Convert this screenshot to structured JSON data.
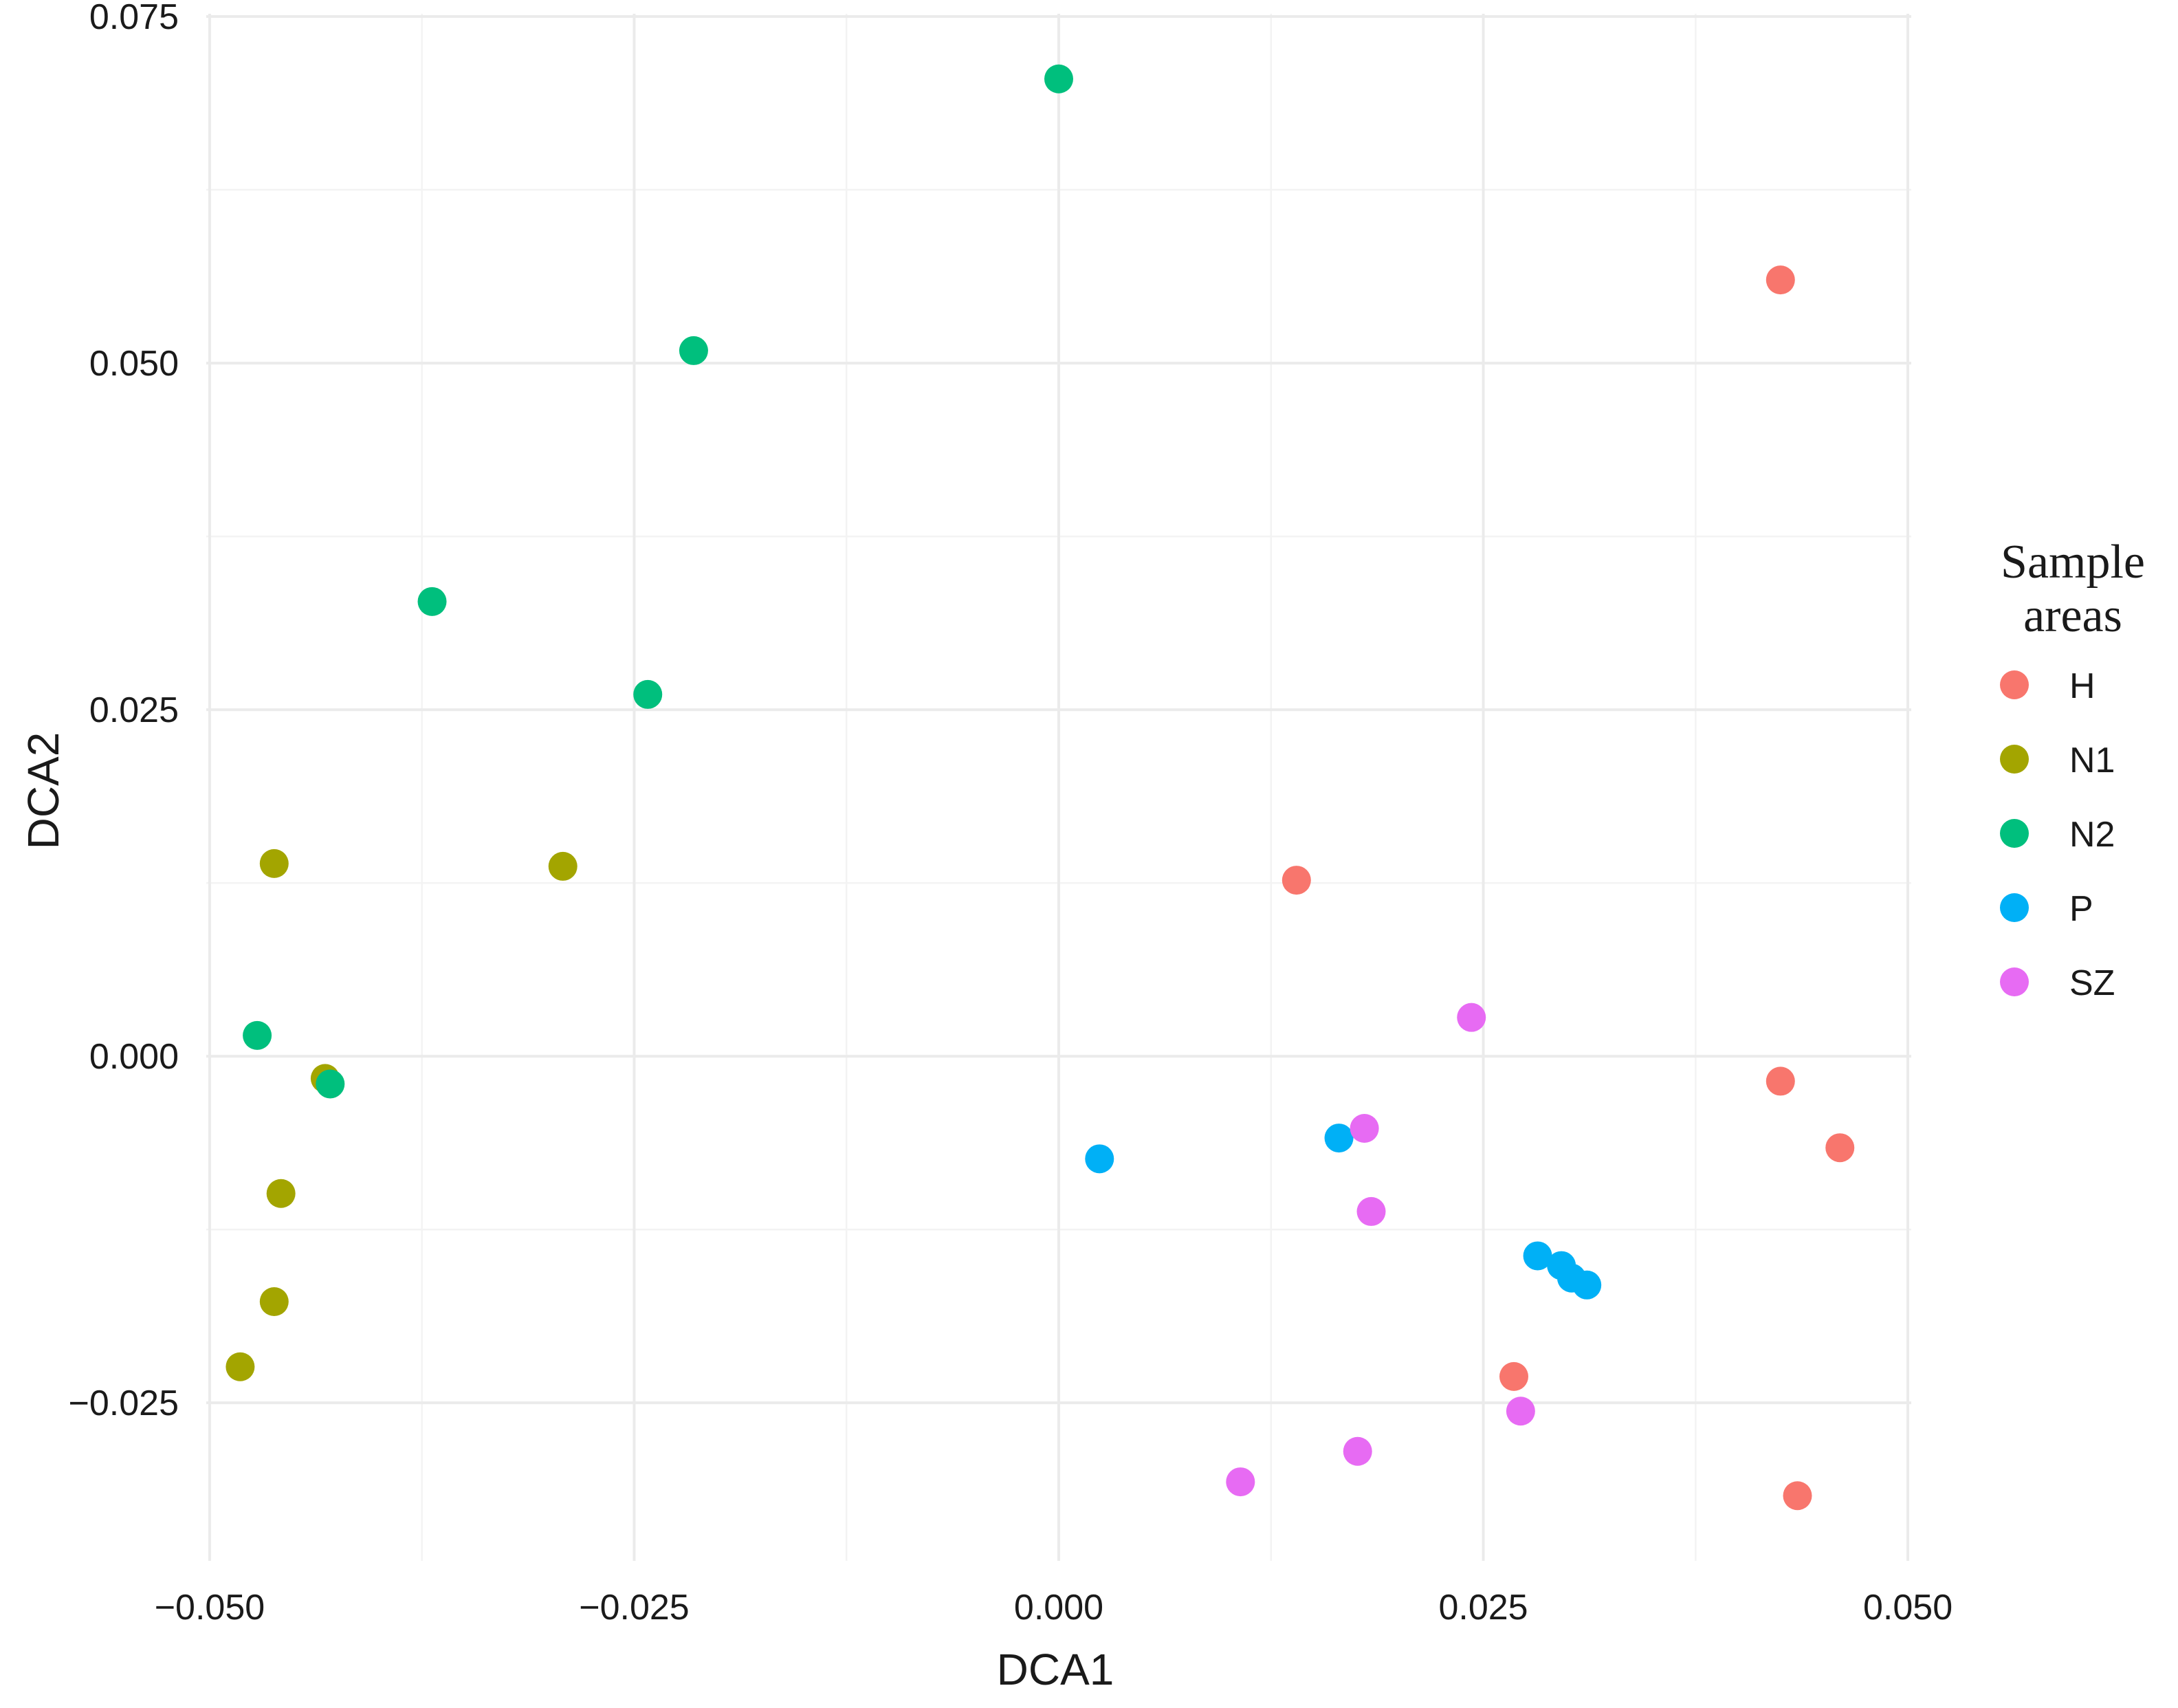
{
  "chart_data": {
    "type": "scatter",
    "title": "",
    "xlabel": "DCA1",
    "ylabel": "DCA2",
    "xlim": [
      -0.0502,
      0.0502
    ],
    "ylim": [
      -0.0364,
      0.0752
    ],
    "x_ticks": [
      -0.05,
      -0.025,
      0.0,
      0.025,
      0.05
    ],
    "x_tick_labels": [
      "−0.050",
      "−0.025",
      "0.000",
      "0.025",
      "0.050"
    ],
    "y_ticks": [
      -0.025,
      0.0,
      0.025,
      0.05,
      0.075
    ],
    "y_tick_labels": [
      "−0.025",
      "0.000",
      "0.025",
      "0.050",
      "0.075"
    ],
    "grid": true,
    "legend": {
      "title_lines": [
        "Sample",
        "areas"
      ],
      "placement": "right"
    },
    "series": [
      {
        "name": "H",
        "color": "#F8766D",
        "points": [
          {
            "x": 0.0425,
            "y": 0.056
          },
          {
            "x": 0.014,
            "y": 0.0127
          },
          {
            "x": 0.0425,
            "y": -0.0018
          },
          {
            "x": 0.046,
            "y": -0.0066
          },
          {
            "x": 0.0268,
            "y": -0.0231
          },
          {
            "x": 0.0435,
            "y": -0.0317
          }
        ]
      },
      {
        "name": "N1",
        "color": "#A3A500",
        "points": [
          {
            "x": -0.0462,
            "y": 0.0139
          },
          {
            "x": -0.0292,
            "y": 0.0137
          },
          {
            "x": -0.0432,
            "y": -0.0016
          },
          {
            "x": -0.0458,
            "y": -0.0099
          },
          {
            "x": -0.0462,
            "y": -0.0177
          },
          {
            "x": -0.0482,
            "y": -0.0224
          }
        ]
      },
      {
        "name": "N2",
        "color": "#00BF7D",
        "points": [
          {
            "x": 0.0,
            "y": 0.0705
          },
          {
            "x": -0.0215,
            "y": 0.0509
          },
          {
            "x": -0.0369,
            "y": 0.0328
          },
          {
            "x": -0.0242,
            "y": 0.0261
          },
          {
            "x": -0.0472,
            "y": 0.0015
          },
          {
            "x": -0.0429,
            "y": -0.002
          }
        ]
      },
      {
        "name": "P",
        "color": "#00B0F6",
        "points": [
          {
            "x": 0.0024,
            "y": -0.0074
          },
          {
            "x": 0.0165,
            "y": -0.0059
          },
          {
            "x": 0.0282,
            "y": -0.0144
          },
          {
            "x": 0.0296,
            "y": -0.0151
          },
          {
            "x": 0.0302,
            "y": -0.016
          },
          {
            "x": 0.0311,
            "y": -0.0165
          }
        ]
      },
      {
        "name": "SZ",
        "color": "#E76BF3",
        "points": [
          {
            "x": 0.0243,
            "y": 0.0028
          },
          {
            "x": 0.018,
            "y": -0.0052
          },
          {
            "x": 0.0184,
            "y": -0.0112
          },
          {
            "x": 0.0272,
            "y": -0.0256
          },
          {
            "x": 0.0176,
            "y": -0.0285
          },
          {
            "x": 0.0107,
            "y": -0.0307
          }
        ]
      }
    ]
  }
}
